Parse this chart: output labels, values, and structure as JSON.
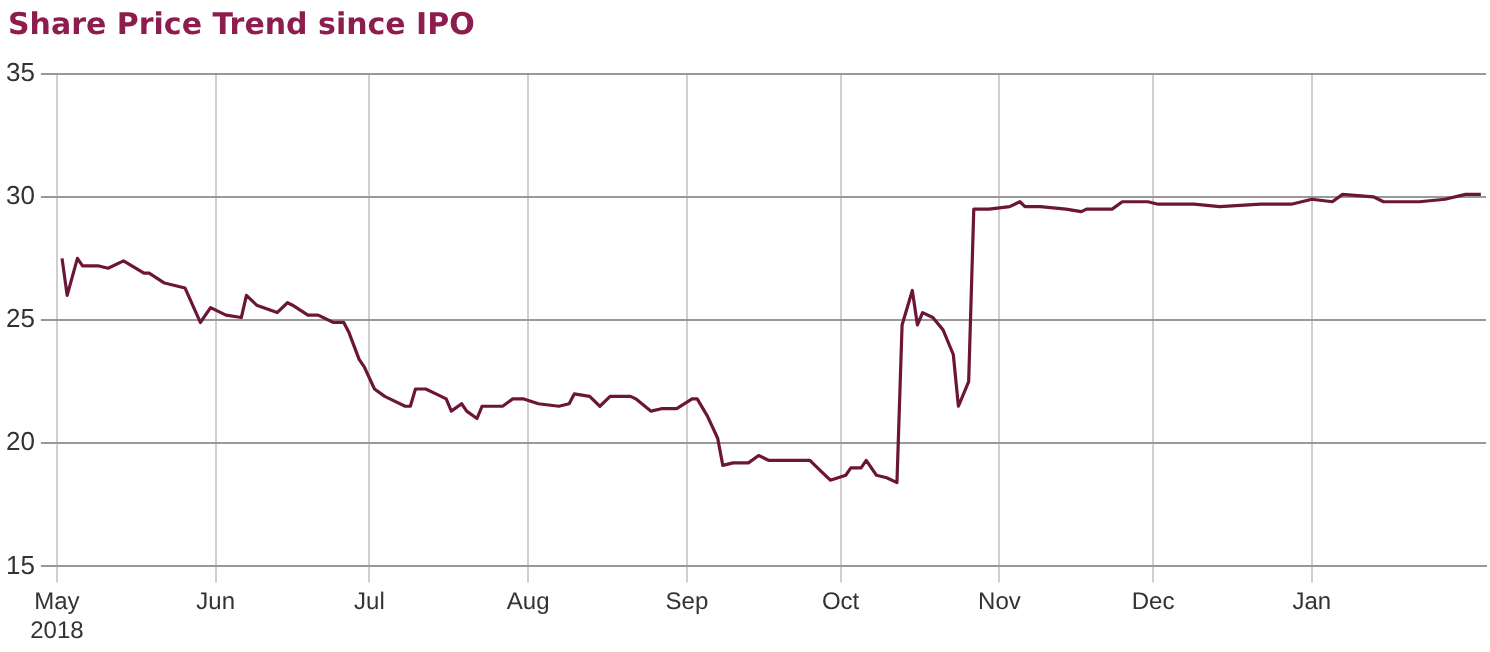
{
  "chart_data": {
    "type": "line",
    "title": "Share Price Trend since IPO",
    "x": [
      "2018-05-02",
      "2018-05-03",
      "2018-05-05",
      "2018-05-06",
      "2018-05-09",
      "2018-05-11",
      "2018-05-14",
      "2018-05-18",
      "2018-05-19",
      "2018-05-22",
      "2018-05-26",
      "2018-05-29",
      "2018-05-31",
      "2018-06-03",
      "2018-06-06",
      "2018-06-07",
      "2018-06-09",
      "2018-06-13",
      "2018-06-15",
      "2018-06-16",
      "2018-06-19",
      "2018-06-21",
      "2018-06-24",
      "2018-06-26",
      "2018-06-27",
      "2018-06-29",
      "2018-06-30",
      "2018-07-02",
      "2018-07-04",
      "2018-07-05",
      "2018-07-08",
      "2018-07-09",
      "2018-07-10",
      "2018-07-12",
      "2018-07-14",
      "2018-07-16",
      "2018-07-17",
      "2018-07-19",
      "2018-07-20",
      "2018-07-22",
      "2018-07-23",
      "2018-07-25",
      "2018-07-27",
      "2018-07-29",
      "2018-07-31",
      "2018-08-03",
      "2018-08-07",
      "2018-08-09",
      "2018-08-10",
      "2018-08-13",
      "2018-08-15",
      "2018-08-17",
      "2018-08-21",
      "2018-08-22",
      "2018-08-25",
      "2018-08-27",
      "2018-08-30",
      "2018-09-02",
      "2018-09-03",
      "2018-09-05",
      "2018-09-07",
      "2018-09-08",
      "2018-09-10",
      "2018-09-13",
      "2018-09-15",
      "2018-09-17",
      "2018-09-20",
      "2018-09-22",
      "2018-09-25",
      "2018-09-27",
      "2018-09-29",
      "2018-10-02",
      "2018-10-03",
      "2018-10-05",
      "2018-10-06",
      "2018-10-08",
      "2018-10-10",
      "2018-10-12",
      "2018-10-13",
      "2018-10-15",
      "2018-10-16",
      "2018-10-17",
      "2018-10-19",
      "2018-10-21",
      "2018-10-23",
      "2018-10-24",
      "2018-10-26",
      "2018-10-27",
      "2018-10-30",
      "2018-11-03",
      "2018-11-05",
      "2018-11-06",
      "2018-11-09",
      "2018-11-14",
      "2018-11-17",
      "2018-11-18",
      "2018-11-21",
      "2018-11-23",
      "2018-11-25",
      "2018-11-30",
      "2018-12-02",
      "2018-12-09",
      "2018-12-14",
      "2018-12-22",
      "2018-12-28",
      "2019-01-01",
      "2019-01-05",
      "2019-01-07",
      "2019-01-13",
      "2019-01-15",
      "2019-01-22",
      "2019-01-27",
      "2019-01-31",
      "2019-02-03"
    ],
    "series": [
      {
        "color": "#6b1638",
        "values": [
          27.5,
          26.0,
          27.5,
          27.2,
          27.2,
          27.1,
          27.4,
          26.9,
          26.9,
          26.5,
          26.3,
          24.9,
          25.5,
          25.2,
          25.1,
          26.0,
          25.6,
          25.3,
          25.7,
          25.6,
          25.2,
          25.2,
          24.9,
          24.9,
          24.5,
          23.4,
          23.1,
          22.2,
          21.9,
          21.8,
          21.5,
          21.5,
          22.2,
          22.2,
          22.0,
          21.8,
          21.3,
          21.6,
          21.3,
          21.0,
          21.5,
          21.5,
          21.5,
          21.8,
          21.8,
          21.6,
          21.5,
          21.6,
          22.0,
          21.9,
          21.5,
          21.9,
          21.9,
          21.8,
          21.3,
          21.4,
          21.4,
          21.8,
          21.8,
          21.1,
          20.2,
          19.1,
          19.2,
          19.2,
          19.5,
          19.3,
          19.3,
          19.3,
          19.3,
          18.9,
          18.5,
          18.7,
          19.0,
          19.0,
          19.3,
          18.7,
          18.6,
          18.4,
          24.8,
          26.2,
          24.8,
          25.3,
          25.1,
          24.6,
          23.6,
          21.5,
          22.5,
          29.5,
          29.5,
          29.6,
          29.8,
          29.6,
          29.6,
          29.5,
          29.4,
          29.5,
          29.5,
          29.5,
          29.8,
          29.8,
          29.7,
          29.7,
          29.6,
          29.7,
          29.7,
          29.9,
          29.8,
          30.1,
          30.0,
          29.8,
          29.8,
          29.9,
          30.1,
          30.1
        ]
      }
    ],
    "xlim": [
      "2018-05-01",
      "2019-02-04"
    ],
    "xticks": [
      {
        "value": "2018-05-01",
        "label": "May\n2018"
      },
      {
        "value": "2018-06-01",
        "label": "Jun"
      },
      {
        "value": "2018-07-01",
        "label": "Jul"
      },
      {
        "value": "2018-08-01",
        "label": "Aug"
      },
      {
        "value": "2018-09-01",
        "label": "Sep"
      },
      {
        "value": "2018-10-01",
        "label": "Oct"
      },
      {
        "value": "2018-11-01",
        "label": "Nov"
      },
      {
        "value": "2018-12-01",
        "label": "Dec"
      },
      {
        "value": "2019-01-01",
        "label": "Jan"
      }
    ],
    "ylim": [
      15,
      35
    ],
    "yticks": [
      15,
      20,
      25,
      30,
      35
    ],
    "grid": true,
    "legend": false,
    "marker": "none",
    "line_style": "solid"
  }
}
